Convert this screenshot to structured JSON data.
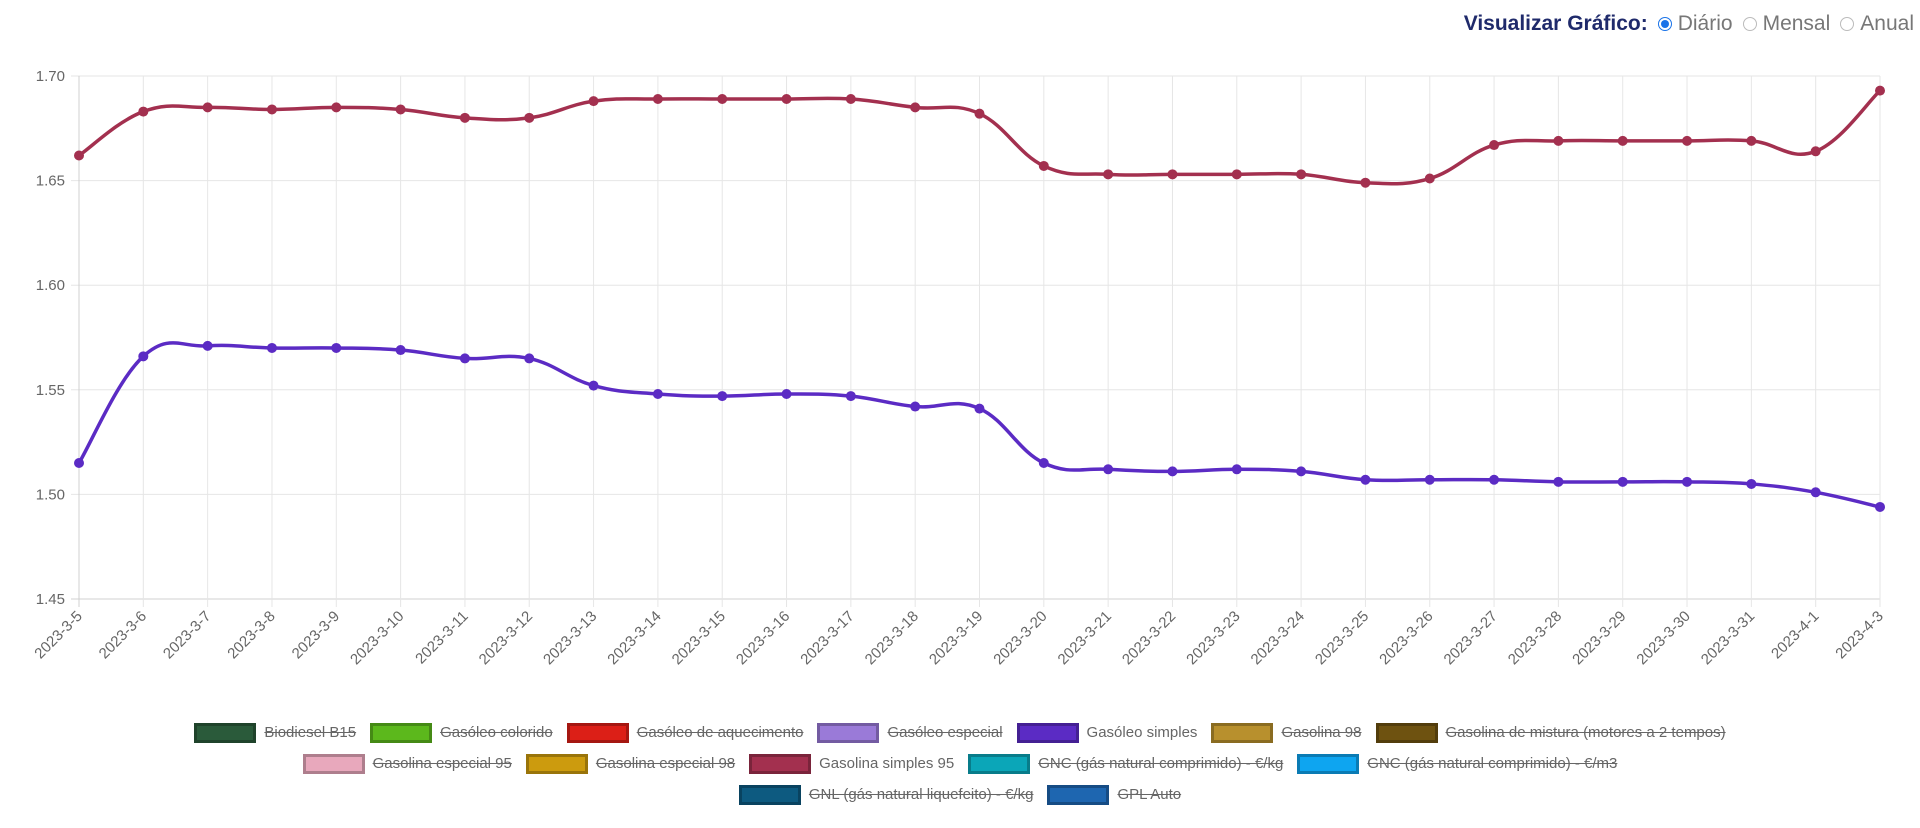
{
  "controls": {
    "label": "Visualizar Gráfico:",
    "options": [
      {
        "label": "Diário",
        "checked": true
      },
      {
        "label": "Mensal",
        "checked": false
      },
      {
        "label": "Anual",
        "checked": false
      }
    ]
  },
  "chart_data": {
    "type": "line",
    "title": "",
    "xlabel": "",
    "ylabel": "",
    "ylim": [
      1.45,
      1.7
    ],
    "yticks": [
      "1.45",
      "1.50",
      "1.55",
      "1.60",
      "1.65",
      "1.70"
    ],
    "categories": [
      "2023-3-5",
      "2023-3-6",
      "2023-3-7",
      "2023-3-8",
      "2023-3-9",
      "2023-3-10",
      "2023-3-11",
      "2023-3-12",
      "2023-3-13",
      "2023-3-14",
      "2023-3-15",
      "2023-3-16",
      "2023-3-17",
      "2023-3-18",
      "2023-3-19",
      "2023-3-20",
      "2023-3-21",
      "2023-3-22",
      "2023-3-23",
      "2023-3-24",
      "2023-3-25",
      "2023-3-26",
      "2023-3-27",
      "2023-3-28",
      "2023-3-29",
      "2023-3-30",
      "2023-3-31",
      "2023-4-1",
      "2023-4-3"
    ],
    "series": [
      {
        "name": "Gasolina simples 95",
        "color": "#a3304f",
        "values": [
          1.662,
          1.683,
          1.685,
          1.684,
          1.685,
          1.684,
          1.68,
          1.68,
          1.688,
          1.689,
          1.689,
          1.689,
          1.689,
          1.685,
          1.682,
          1.657,
          1.653,
          1.653,
          1.653,
          1.653,
          1.649,
          1.651,
          1.667,
          1.669,
          1.669,
          1.669,
          1.669,
          1.664,
          1.693
        ]
      },
      {
        "name": "Gasóleo simples",
        "color": "#5b2bc4",
        "values": [
          1.515,
          1.566,
          1.571,
          1.57,
          1.57,
          1.569,
          1.565,
          1.565,
          1.552,
          1.548,
          1.547,
          1.548,
          1.547,
          1.542,
          1.541,
          1.515,
          1.512,
          1.511,
          1.512,
          1.511,
          1.507,
          1.507,
          1.507,
          1.506,
          1.506,
          1.506,
          1.505,
          1.501,
          1.494
        ]
      }
    ],
    "legend": [
      [
        {
          "label": "Biodiesel B15",
          "color": "#2a5a3a",
          "hidden": true
        },
        {
          "label": "Gasóleo colorido",
          "color": "#5cb81c",
          "hidden": true
        },
        {
          "label": "Gasóleo de aquecimento",
          "color": "#dc1f17",
          "hidden": true
        },
        {
          "label": "Gasóleo especial",
          "color": "#9a7ad8",
          "hidden": true
        },
        {
          "label": "Gasóleo simples",
          "color": "#5b2bc4",
          "hidden": false
        },
        {
          "label": "Gasolina 98",
          "color": "#b8902d",
          "hidden": true
        },
        {
          "label": "Gasolina de mistura (motores a 2 tempos)",
          "color": "#6e5210",
          "hidden": true
        }
      ],
      [
        {
          "label": "Gasolina especial 95",
          "color": "#e8a8bc",
          "hidden": true
        },
        {
          "label": "Gasolina especial 98",
          "color": "#cc9b0e",
          "hidden": true
        },
        {
          "label": "Gasolina simples 95",
          "color": "#a3304f",
          "hidden": false
        },
        {
          "label": "GNC (gás natural comprimido) - €/kg",
          "color": "#0ba6b8",
          "hidden": true
        },
        {
          "label": "GNC (gás natural comprimido) - €/m3",
          "color": "#0ea5f0",
          "hidden": true
        }
      ],
      [
        {
          "label": "GNL (gás natural liquefeito) - €/kg",
          "color": "#0d5a80",
          "hidden": true
        },
        {
          "label": "GPL Auto",
          "color": "#1e66b0",
          "hidden": true
        }
      ]
    ]
  }
}
